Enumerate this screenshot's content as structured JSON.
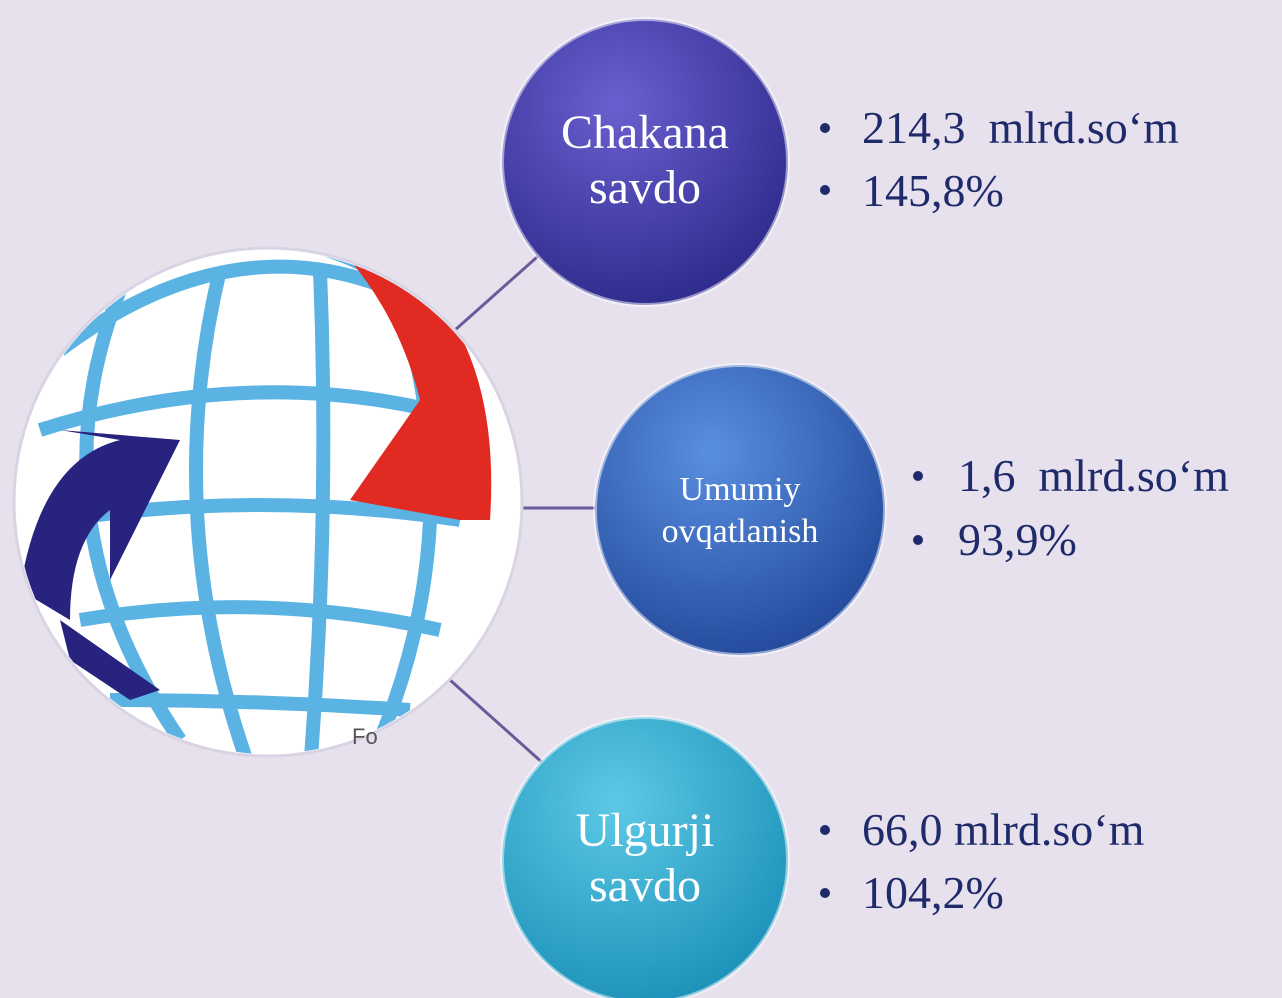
{
  "nodes": [
    {
      "label": [
        "Chakana",
        "savdo"
      ],
      "bullets": [
        "214,3  mlrd.so‘m",
        "145,8%"
      ]
    },
    {
      "label": [
        "Umumiy",
        "ovqatlanish"
      ],
      "bullets": [
        "1,6  mlrd.so‘m",
        "93,9%"
      ]
    },
    {
      "label": [
        "Ulgurji",
        "savdo"
      ],
      "bullets": [
        "66,0 mlrd.so‘m",
        "104,2%"
      ]
    }
  ],
  "image_caption": "Fo"
}
